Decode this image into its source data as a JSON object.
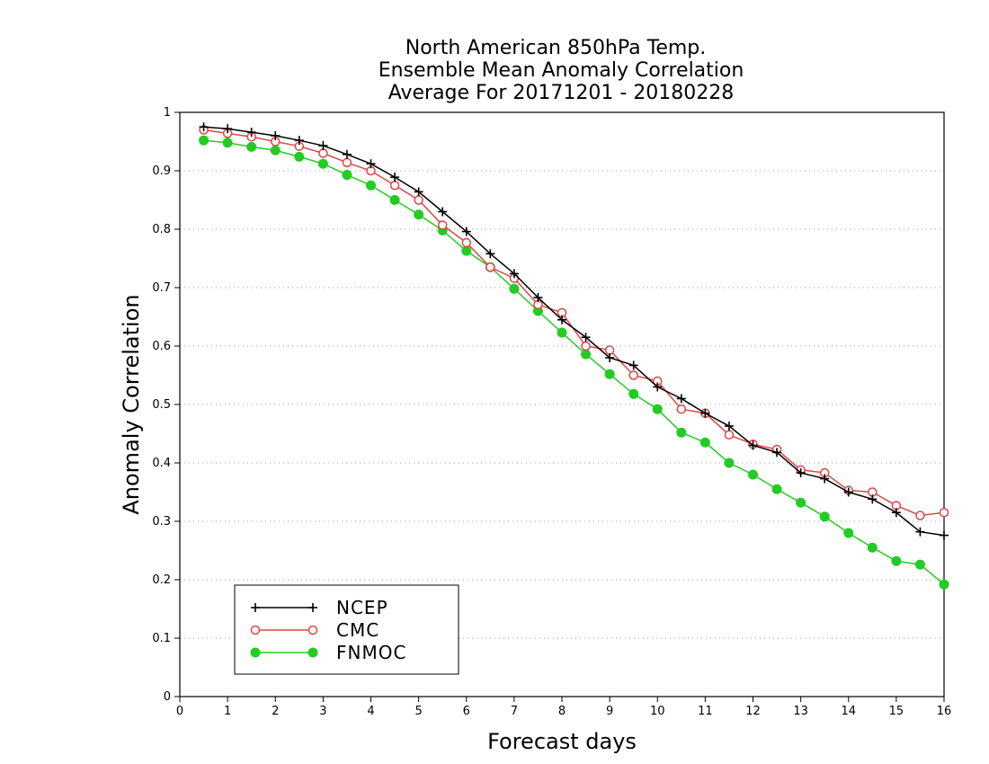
{
  "chart_data": {
    "type": "line",
    "title_lines": [
      "North American 850hPa Temp.",
      "Ensemble Mean Anomaly Correlation",
      "Average For 20171201 - 20180228"
    ],
    "xlabel": "Forecast days",
    "ylabel": "Anomaly Correlation",
    "xlim": [
      0,
      16
    ],
    "ylim": [
      0,
      1
    ],
    "x_ticks": [
      0,
      1,
      2,
      3,
      4,
      5,
      6,
      7,
      8,
      9,
      10,
      11,
      12,
      13,
      14,
      15,
      16
    ],
    "y_ticks": [
      0,
      0.1,
      0.2,
      0.3,
      0.4,
      0.5,
      0.6,
      0.7,
      0.8,
      0.9,
      1
    ],
    "y_tick_labels": [
      "0",
      "0.1",
      "0.2",
      "0.3",
      "0.4",
      "0.5",
      "0.6",
      "0.7",
      "0.8",
      "0.9",
      "1"
    ],
    "grid": "horizontal dotted",
    "legend_position": "bottom-left",
    "x": [
      0.5,
      1.0,
      1.5,
      2.0,
      2.5,
      3.0,
      3.5,
      4.0,
      4.5,
      5.0,
      5.5,
      6.0,
      6.5,
      7.0,
      7.5,
      8.0,
      8.5,
      9.0,
      9.5,
      10.0,
      10.5,
      11.0,
      11.5,
      12.0,
      12.5,
      13.0,
      13.5,
      14.0,
      14.5,
      15.0,
      15.5,
      16.0
    ],
    "series": [
      {
        "name": "NCEP",
        "color": "#000000",
        "marker": "plus",
        "values": [
          0.975,
          0.972,
          0.966,
          0.96,
          0.952,
          0.943,
          0.928,
          0.912,
          0.889,
          0.864,
          0.83,
          0.796,
          0.758,
          0.724,
          0.683,
          0.645,
          0.615,
          0.58,
          0.567,
          0.53,
          0.51,
          0.485,
          0.463,
          0.43,
          0.418,
          0.383,
          0.373,
          0.35,
          0.338,
          0.315,
          0.282,
          0.276
        ]
      },
      {
        "name": "CMC",
        "color": "#e04545",
        "marker": "open-circle",
        "values": [
          0.97,
          0.964,
          0.958,
          0.95,
          0.942,
          0.93,
          0.914,
          0.9,
          0.875,
          0.85,
          0.807,
          0.777,
          0.735,
          0.716,
          0.671,
          0.657,
          0.6,
          0.593,
          0.55,
          0.54,
          0.492,
          0.485,
          0.448,
          0.432,
          0.423,
          0.388,
          0.383,
          0.353,
          0.35,
          0.327,
          0.31,
          0.315
        ]
      },
      {
        "name": "FNMOC",
        "color": "#22cc22",
        "marker": "filled-circle",
        "values": [
          0.952,
          0.948,
          0.941,
          0.935,
          0.924,
          0.912,
          0.893,
          0.875,
          0.85,
          0.825,
          0.798,
          0.763,
          0.735,
          0.698,
          0.66,
          0.623,
          0.586,
          0.552,
          0.518,
          0.492,
          0.452,
          0.435,
          0.4,
          0.38,
          0.355,
          0.332,
          0.308,
          0.28,
          0.255,
          0.232,
          0.226,
          0.192
        ]
      }
    ]
  }
}
